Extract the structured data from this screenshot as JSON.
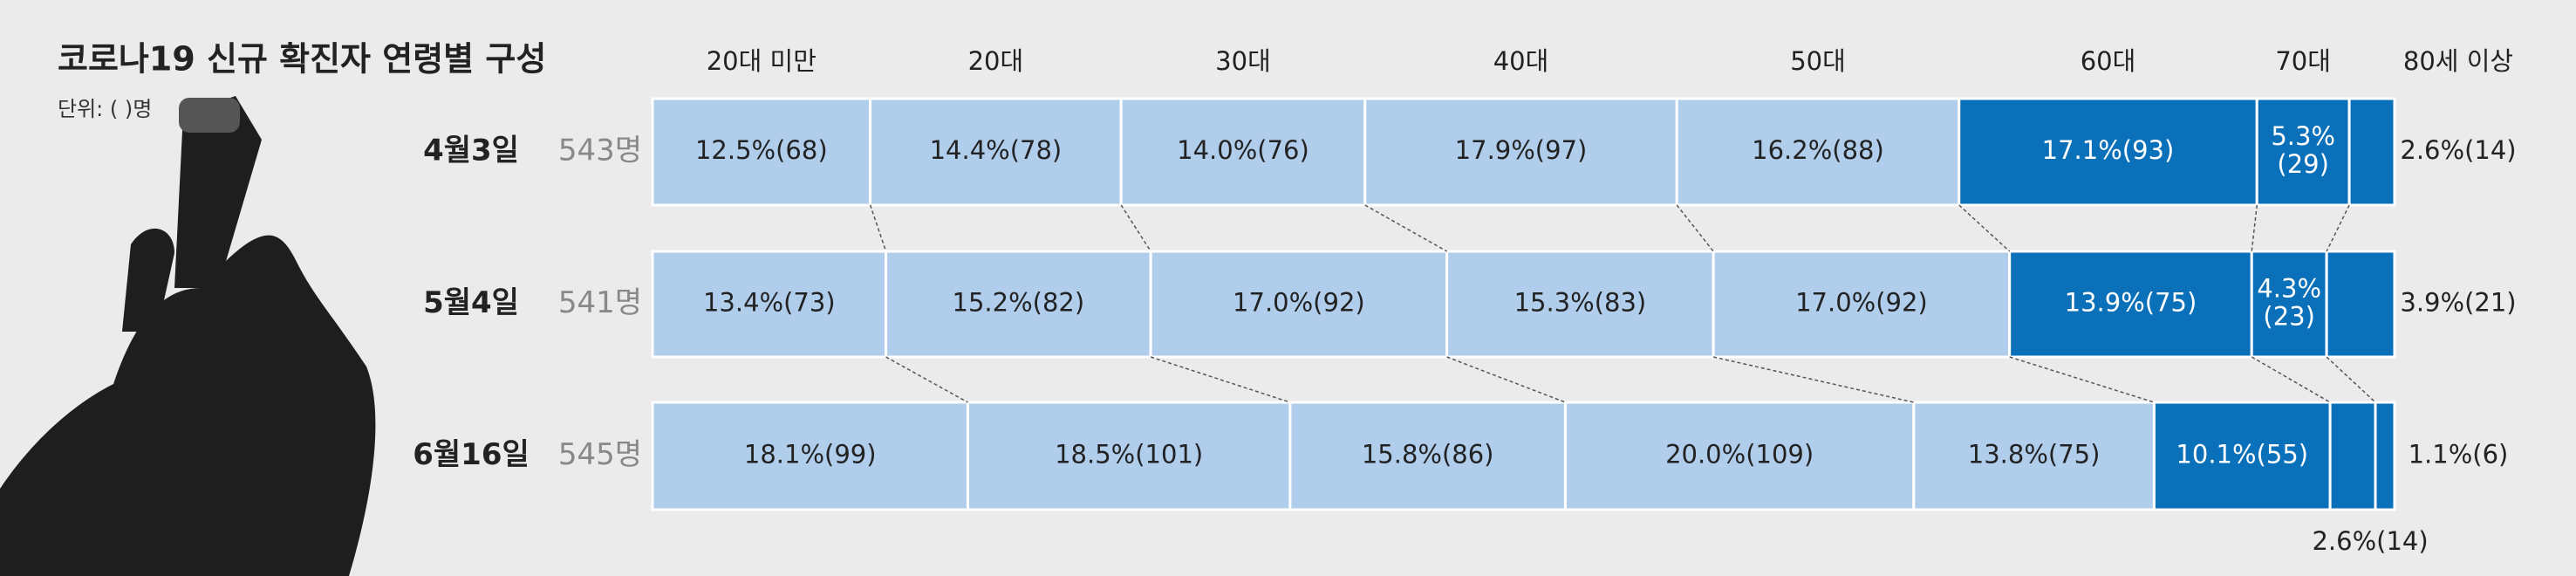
{
  "chart_data": {
    "type": "stacked_bar_100",
    "title": "코로나19 신규 확진자 연령별 구성",
    "subtitle": "단위: ( )명",
    "categories": [
      "4월3일",
      "5월4일",
      "6월16일"
    ],
    "totals": [
      "543명",
      "541명",
      "545명"
    ],
    "xlim": [
      0,
      100
    ],
    "series": [
      {
        "name": "20대 미만",
        "color": "#b0cdec",
        "values": [
          12.5,
          13.4,
          18.1
        ],
        "value_labels": [
          "12.5%(68)",
          "13.4%(73)",
          "18.1%(99)"
        ]
      },
      {
        "name": "20대",
        "color": "#b0cdec",
        "values": [
          14.4,
          15.2,
          18.5
        ],
        "value_labels": [
          "14.4%(78)",
          "15.2%(82)",
          "18.5%(101)"
        ]
      },
      {
        "name": "30대",
        "color": "#b0cdec",
        "values": [
          14.0,
          17.0,
          15.8
        ],
        "value_labels": [
          "14.0%(76)",
          "17.0%(92)",
          "15.8%(86)"
        ]
      },
      {
        "name": "40대",
        "color": "#b0cdec",
        "values": [
          17.9,
          15.3,
          20.0
        ],
        "value_labels": [
          "17.9%(97)",
          "15.3%(83)",
          "20.0%(109)"
        ]
      },
      {
        "name": "50대",
        "color": "#b0cdec",
        "values": [
          16.2,
          17.0,
          13.8
        ],
        "value_labels": [
          "16.2%(88)",
          "17.0%(92)",
          "13.8%(75)"
        ]
      },
      {
        "name": "60대",
        "color": "#0a70ba",
        "values": [
          17.1,
          13.9,
          10.1
        ],
        "value_labels": [
          "17.1%(93)",
          "13.9%(75)",
          "10.1%(55)"
        ]
      },
      {
        "name": "70대",
        "color": "#0a70ba",
        "values": [
          5.3,
          4.3,
          2.6
        ],
        "value_labels": [
          "5.3%(29)",
          "4.3%(23)",
          "2.6%(14)"
        ]
      },
      {
        "name": "80세 이상",
        "color": "#0a70ba",
        "values": [
          2.6,
          3.9,
          1.1
        ],
        "value_labels": [
          "2.6%(14)",
          "3.9%(21)",
          "1.1%(6)"
        ]
      }
    ]
  }
}
